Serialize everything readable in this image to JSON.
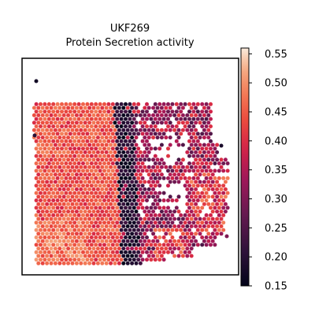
{
  "chart_data": {
    "type": "heatmap",
    "title_lines": [
      "UKF269",
      "Protein Secretion activity"
    ],
    "colorbar": {
      "colormap": "rocket",
      "range": [
        0.15,
        0.56
      ],
      "ticks": [
        "0.15",
        "0.20",
        "0.25",
        "0.30",
        "0.35",
        "0.40",
        "0.45",
        "0.50",
        "0.55"
      ]
    },
    "spatial_pattern": [
      {
        "region": "left tissue area",
        "approx_value": 0.45
      },
      {
        "region": "central vertical band",
        "approx_value": 0.18
      },
      {
        "region": "right tissue area",
        "approx_value": 0.33
      }
    ],
    "axes_visible": false,
    "grid": false
  }
}
